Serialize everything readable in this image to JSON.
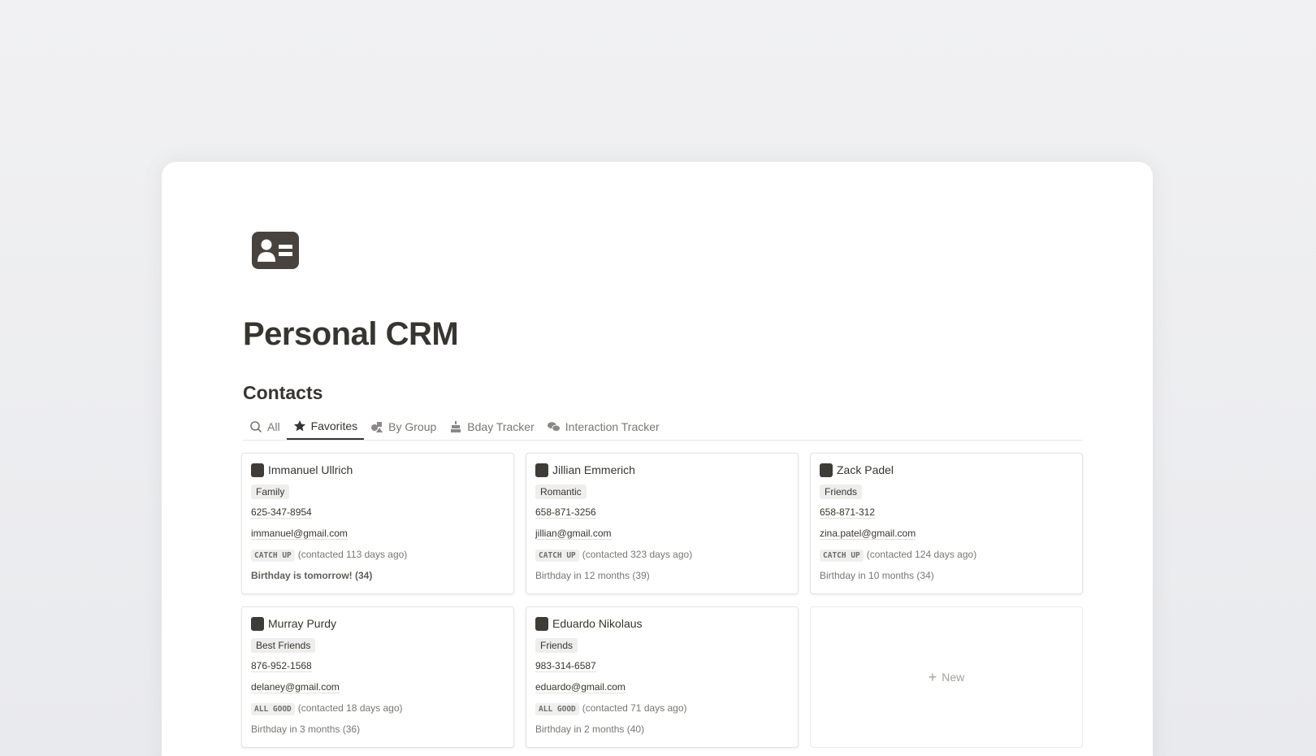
{
  "page": {
    "title": "Personal CRM",
    "icon": "contact-card-icon"
  },
  "database": {
    "title": "Contacts",
    "tabs": [
      {
        "label": "All",
        "icon": "search-icon",
        "active": false
      },
      {
        "label": "Favorites",
        "icon": "star-icon",
        "active": true
      },
      {
        "label": "By Group",
        "icon": "shapes-icon",
        "active": false
      },
      {
        "label": "Bday Tracker",
        "icon": "cake-icon",
        "active": false
      },
      {
        "label": "Interaction Tracker",
        "icon": "chat-bubbles-icon",
        "active": false
      }
    ],
    "cards": [
      {
        "name": "Immanuel Ullrich",
        "group": "Family",
        "phone": "625-347-8954",
        "email": "immanuel@gmail.com",
        "status": "CATCH UP",
        "contacted": "(contacted 113 days ago)",
        "birthday": "Birthday is tomorrow! (34)"
      },
      {
        "name": "Jillian Emmerich",
        "group": "Romantic",
        "phone": "658-871-3256",
        "email": "jillian@gmail.com",
        "status": "CATCH UP",
        "contacted": "(contacted 323 days ago)",
        "birthday": "Birthday in 12 months (39)"
      },
      {
        "name": "Zack Padel",
        "group": "Friends",
        "phone": "658-871-312",
        "email": "zina.patel@gmail.com",
        "status": "CATCH UP",
        "contacted": "(contacted 124 days ago)",
        "birthday": "Birthday in 10 months (34)"
      },
      {
        "name": "Murray Purdy",
        "group": "Best Friends",
        "phone": "876-952-1568",
        "email": "delaney@gmail.com",
        "status": "ALL GOOD",
        "contacted": "(contacted 18 days ago)",
        "birthday": "Birthday in 3 months (36)"
      },
      {
        "name": "Eduardo Nikolaus",
        "group": "Friends",
        "phone": "983-314-6587",
        "email": "eduardo@gmail.com",
        "status": "ALL GOOD",
        "contacted": "(contacted 71 days ago)",
        "birthday": "Birthday in 2 months (40)"
      }
    ],
    "new_label": "New"
  }
}
